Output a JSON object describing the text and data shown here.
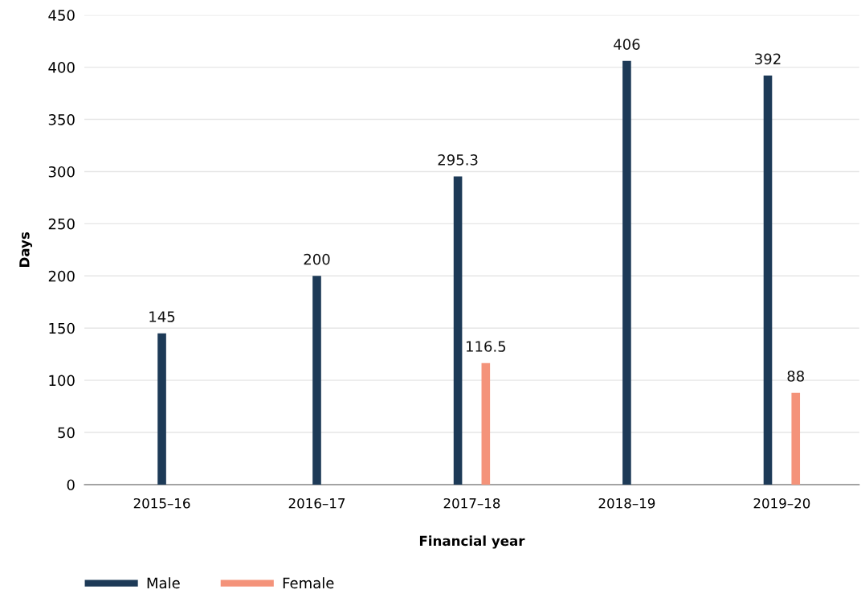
{
  "chart_data": {
    "type": "bar",
    "xlabel": "Financial year",
    "ylabel": "Days",
    "categories": [
      "2015–16",
      "2016–17",
      "2017–18",
      "2018–19",
      "2019–20"
    ],
    "series": [
      {
        "name": "Male",
        "color": "#1d3a57",
        "values": [
          145,
          200,
          295.3,
          406,
          392
        ]
      },
      {
        "name": "Female",
        "color": "#f4937a",
        "values": [
          null,
          null,
          116.5,
          null,
          88
        ]
      }
    ],
    "ylim": [
      0,
      450
    ],
    "yticks": [
      0,
      50,
      100,
      150,
      200,
      250,
      300,
      350,
      400,
      450
    ],
    "grid": "y",
    "legend": "bottom left",
    "data_labels": true
  }
}
